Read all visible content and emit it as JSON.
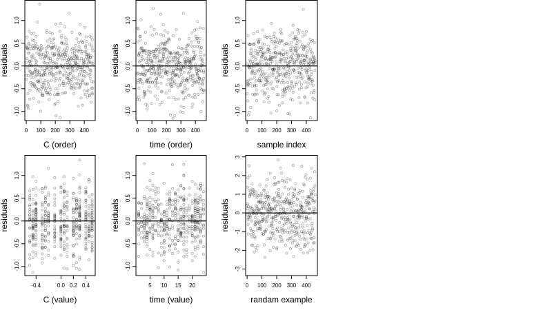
{
  "figure": {
    "background": "#ffffff"
  },
  "style": {
    "point_color": "#000000",
    "point_opacity": 0.45,
    "zero_line_color": "#000000"
  },
  "chart_data": [
    {
      "type": "scatter",
      "xlabel": "C (order)",
      "ylabel": "residuals",
      "xlim": [
        -10,
        475
      ],
      "ylim": [
        -1.2,
        1.45
      ],
      "xticks": [
        0,
        100,
        200,
        300,
        400
      ],
      "xtick_labels": [
        "0",
        "100",
        "200",
        "300",
        "400"
      ],
      "yticks": [
        -1.0,
        -0.5,
        0.0,
        0.5,
        1.0
      ],
      "ytick_labels": [
        "-1.0",
        "-0.5",
        "0.0",
        "0.5",
        "1.0"
      ],
      "zero_line": true,
      "points": {
        "x_domain": [
          0,
          460
        ],
        "count": 460,
        "sd": 0.42,
        "seed": 101
      }
    },
    {
      "type": "scatter",
      "xlabel": "time (order)",
      "ylabel": "residuals",
      "xlim": [
        -10,
        475
      ],
      "ylim": [
        -1.2,
        1.45
      ],
      "xticks": [
        0,
        100,
        200,
        300,
        400
      ],
      "xtick_labels": [
        "0",
        "100",
        "200",
        "300",
        "400"
      ],
      "yticks": [
        -1.0,
        -0.5,
        0.0,
        0.5,
        1.0
      ],
      "ytick_labels": [
        "-1.0",
        "-0.5",
        "0.0",
        "0.5",
        "1.0"
      ],
      "zero_line": true,
      "points": {
        "x_domain": [
          0,
          460
        ],
        "count": 460,
        "sd": 0.42,
        "seed": 202
      }
    },
    {
      "type": "scatter",
      "xlabel": "sample index",
      "ylabel": "residuals",
      "xlim": [
        -10,
        475
      ],
      "ylim": [
        -1.2,
        1.45
      ],
      "xticks": [
        0,
        100,
        200,
        300,
        400
      ],
      "xtick_labels": [
        "0",
        "100",
        "200",
        "300",
        "400"
      ],
      "yticks": [
        -1.0,
        -0.5,
        0.0,
        0.5,
        1.0
      ],
      "ytick_labels": [
        "-1.0",
        "-0.5",
        "0.0",
        "0.5",
        "1.0"
      ],
      "zero_line": true,
      "points": {
        "x_domain": [
          0,
          460
        ],
        "count": 460,
        "sd": 0.42,
        "seed": 303
      }
    },
    {
      "type": "scatter",
      "xlabel": "C (value)",
      "ylabel": "residuals",
      "xlim": [
        -0.58,
        0.55
      ],
      "ylim": [
        -1.2,
        1.45
      ],
      "xticks": [
        -0.4,
        0.0,
        0.2,
        0.4
      ],
      "xtick_labels": [
        "-0.4",
        "0.0",
        "0.2",
        "0.4"
      ],
      "yticks": [
        -1.0,
        -0.5,
        0.0,
        0.5,
        1.0
      ],
      "ytick_labels": [
        "-1.0",
        "-0.5",
        "0.0",
        "0.5",
        "1.0"
      ],
      "zero_line": true,
      "points": {
        "x_levels": [
          -0.5,
          -0.45,
          -0.4,
          -0.3,
          -0.25,
          -0.2,
          -0.1,
          0.0,
          0.05,
          0.1,
          0.2,
          0.25,
          0.3,
          0.4,
          0.45,
          0.5
        ],
        "count": 460,
        "sd": 0.42,
        "seed": 404
      }
    },
    {
      "type": "scatter",
      "xlabel": "time (value)",
      "ylabel": "residuals",
      "xlim": [
        0,
        25
      ],
      "ylim": [
        -1.2,
        1.45
      ],
      "xticks": [
        5,
        10,
        15,
        20
      ],
      "xtick_labels": [
        "5",
        "10",
        "15",
        "20"
      ],
      "yticks": [
        -1.0,
        -0.5,
        0.0,
        0.5,
        1.0
      ],
      "ytick_labels": [
        "-1.0",
        "-0.5",
        "0.0",
        "0.5",
        "1.0"
      ],
      "zero_line": true,
      "points": {
        "x_levels": [
          1,
          2,
          3,
          4,
          5,
          6,
          7,
          8,
          9,
          10,
          11,
          12,
          13,
          14,
          15,
          16,
          17,
          18,
          19,
          20,
          21,
          22,
          23,
          24
        ],
        "count": 460,
        "sd": 0.42,
        "seed": 505
      }
    },
    {
      "type": "scatter",
      "xlabel": "randam example",
      "ylabel": "residuals",
      "xlim": [
        -10,
        475
      ],
      "ylim": [
        -3.35,
        3.1
      ],
      "xticks": [
        0,
        100,
        200,
        300,
        400
      ],
      "xtick_labels": [
        "0",
        "100",
        "200",
        "300",
        "400"
      ],
      "yticks": [
        -3,
        -2,
        -1,
        0,
        1,
        2,
        3
      ],
      "ytick_labels": [
        "-3",
        "-2",
        "-1",
        "0",
        "1",
        "2",
        "3"
      ],
      "zero_line": true,
      "points": {
        "x_domain": [
          0,
          460
        ],
        "count": 460,
        "sd": 1.0,
        "seed": 606
      }
    }
  ]
}
